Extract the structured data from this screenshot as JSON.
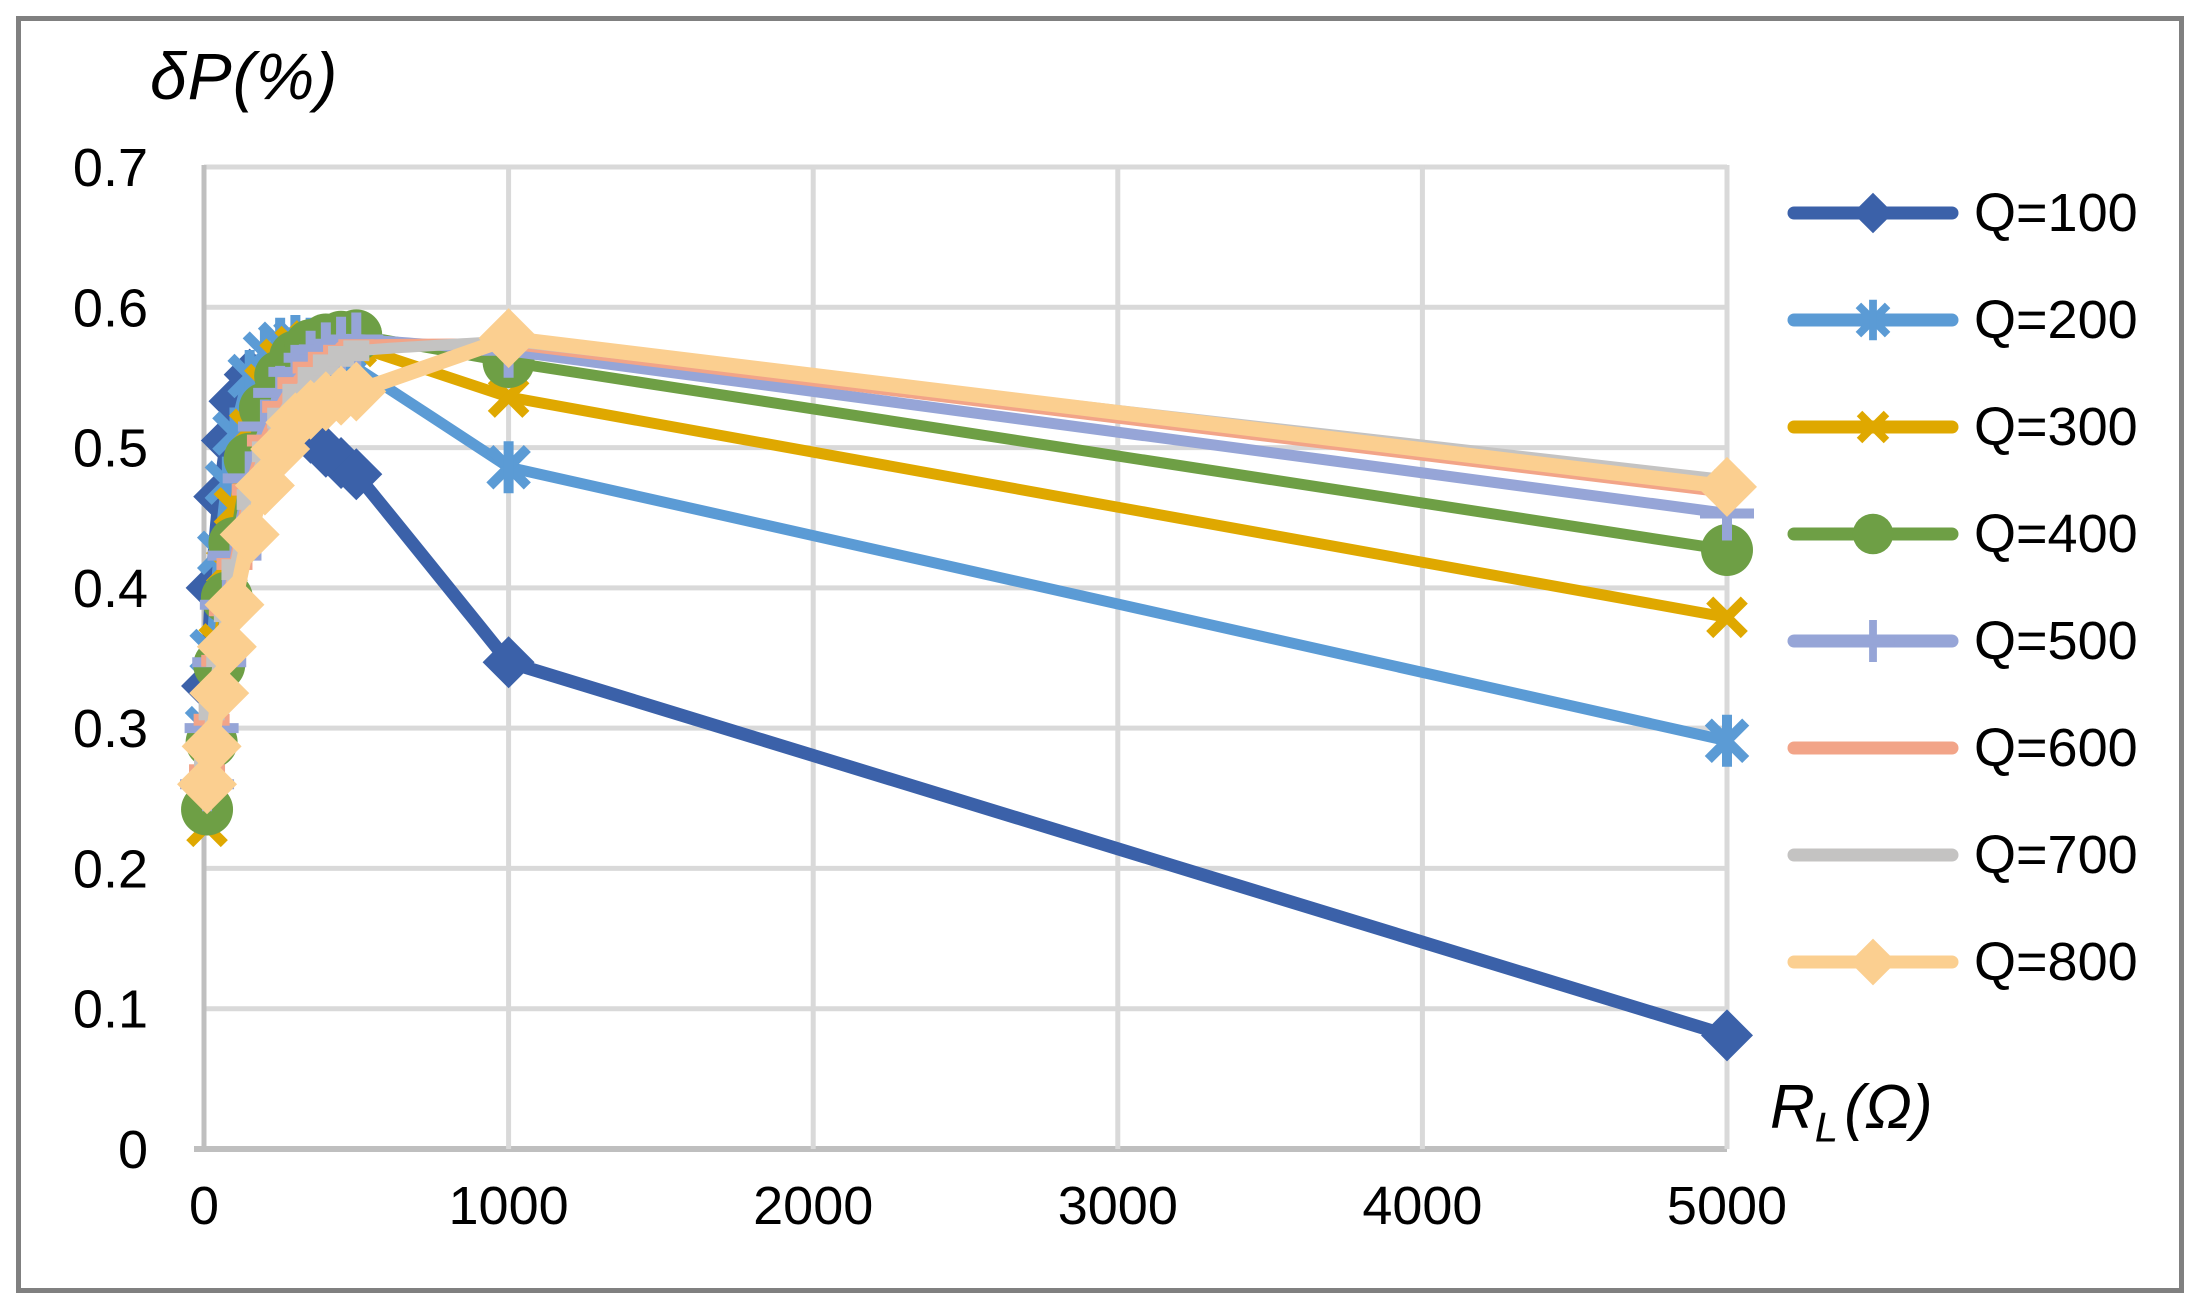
{
  "chart_data": {
    "type": "line",
    "ylabel": "δP(%)",
    "xlabel_main": "R",
    "xlabel_sub": "L",
    "xlabel_unit": "(Ω)",
    "xlim": [
      0,
      5000
    ],
    "ylim": [
      0,
      0.7
    ],
    "grid": true,
    "legend_position": "right",
    "xticks": {
      "values": [
        0,
        1000,
        2000,
        3000,
        4000,
        5000
      ],
      "labels": [
        "0",
        "1000",
        "2000",
        "3000",
        "4000",
        "5000"
      ]
    },
    "yticks": {
      "values": [
        0,
        0.1,
        0.2,
        0.3,
        0.4,
        0.5,
        0.6,
        0.7
      ],
      "labels": [
        "0",
        "0.1",
        "0.2",
        "0.3",
        "0.4",
        "0.5",
        "0.6",
        "0.7"
      ]
    },
    "x": [
      10,
      25,
      50,
      75,
      100,
      150,
      200,
      250,
      300,
      350,
      400,
      450,
      500,
      1000,
      5000
    ],
    "series": [
      {
        "name": "Q=100",
        "color": "#3B61A9",
        "marker": "diamond",
        "marker_size": 26,
        "line_width": 13,
        "legend_marker": true,
        "values": [
          0.33,
          0.4,
          0.465,
          0.505,
          0.533,
          0.552,
          0.548,
          0.536,
          0.521,
          0.507,
          0.497,
          0.489,
          0.481,
          0.347,
          0.081
        ]
      },
      {
        "name": "Q=200",
        "color": "#5B9BD5",
        "marker": "asterisk",
        "marker_size": 26,
        "line_width": 11,
        "legend_marker": true,
        "values": [
          0.3,
          0.355,
          0.425,
          0.475,
          0.51,
          0.551,
          0.567,
          0.574,
          0.576,
          0.574,
          0.569,
          0.563,
          0.557,
          0.486,
          0.291
        ]
      },
      {
        "name": "Q=300",
        "color": "#DFA800",
        "marker": "x",
        "marker_size": 24,
        "line_width": 11,
        "legend_marker": true,
        "values": [
          0.23,
          0.29,
          0.36,
          0.415,
          0.457,
          0.513,
          0.545,
          0.563,
          0.572,
          0.576,
          0.577,
          0.575,
          0.572,
          0.536,
          0.379
        ]
      },
      {
        "name": "Q=400",
        "color": "#6E9F45",
        "marker": "circle",
        "marker_size": 26,
        "line_width": 11,
        "legend_marker": true,
        "values": [
          0.242,
          0.29,
          0.345,
          0.393,
          0.432,
          0.492,
          0.528,
          0.551,
          0.565,
          0.573,
          0.577,
          0.579,
          0.58,
          0.561,
          0.427
        ]
      },
      {
        "name": "Q=500",
        "color": "#96A5D7",
        "marker": "plus",
        "marker_size": 27,
        "line_width": 11,
        "legend_marker": true,
        "values": [
          0.26,
          0.3,
          0.347,
          0.388,
          0.423,
          0.478,
          0.515,
          0.539,
          0.554,
          0.564,
          0.57,
          0.574,
          0.577,
          0.569,
          0.453
        ]
      },
      {
        "name": "Q=600",
        "color": "#F2A488",
        "marker": "dash",
        "marker_size": 18,
        "line_width": 11,
        "legend_marker": false,
        "values": [
          0.27,
          0.306,
          0.348,
          0.384,
          0.417,
          0.47,
          0.505,
          0.529,
          0.546,
          0.557,
          0.564,
          0.569,
          0.573,
          0.574,
          0.468
        ]
      },
      {
        "name": "Q=700",
        "color": "#C4C3C2",
        "marker": "square",
        "marker_size": 13,
        "line_width": 11,
        "legend_marker": false,
        "values": [
          0.28,
          0.313,
          0.351,
          0.383,
          0.413,
          0.463,
          0.497,
          0.521,
          0.538,
          0.55,
          0.559,
          0.565,
          0.569,
          0.576,
          0.477
        ]
      },
      {
        "name": "Q=800",
        "color": "#FBCF90",
        "marker": "diamond",
        "marker_size": 30,
        "line_width": 15,
        "legend_marker": true,
        "values": [
          0.26,
          0.287,
          0.325,
          0.358,
          0.388,
          0.438,
          0.473,
          0.499,
          0.518,
          0.527,
          0.533,
          0.537,
          0.54,
          0.578,
          0.472
        ]
      }
    ],
    "style": {
      "grid_color": "#D9D9D9",
      "axis_color": "#BFBFBF",
      "frame_color": "#808080",
      "text_color": "#000000"
    }
  }
}
